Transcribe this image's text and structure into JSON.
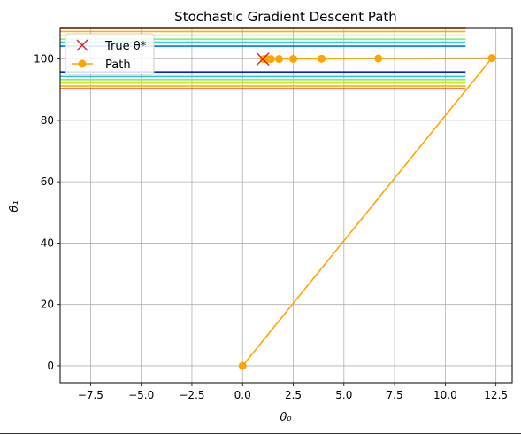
{
  "chart_data": {
    "type": "line",
    "title": "Stochastic Gradient Descent Path",
    "xlabel": "θ₀",
    "ylabel": "θ₁",
    "xlim": [
      -9,
      13.3
    ],
    "ylim": [
      -5.5,
      110
    ],
    "xticks": [
      "−7.5",
      "−5.0",
      "−2.5",
      "0.0",
      "2.5",
      "5.0",
      "7.5",
      "10.0",
      "12.5"
    ],
    "xtick_values": [
      -7.5,
      -5.0,
      -2.5,
      0.0,
      2.5,
      5.0,
      7.5,
      10.0,
      12.5
    ],
    "yticks": [
      "0",
      "20",
      "40",
      "60",
      "80",
      "100"
    ],
    "ytick_values": [
      0,
      20,
      40,
      60,
      80,
      100
    ],
    "grid": true,
    "legend": {
      "location": "upper left",
      "entries": [
        "True θ*",
        "Path"
      ]
    },
    "true_theta": {
      "name": "True θ*",
      "x": 1.0,
      "y": 100.0,
      "color": "#e41a1c",
      "marker": "x"
    },
    "path": {
      "name": "Path",
      "color": "#ffa500",
      "marker": "o",
      "x": [
        0.0,
        12.3,
        6.7,
        3.9,
        2.5,
        1.8,
        1.4,
        1.2,
        1.1,
        1.05
      ],
      "y": [
        0.0,
        100.3,
        100.2,
        100.1,
        100.05,
        100.03,
        100.02,
        100.01,
        100.0,
        100.0
      ]
    },
    "contours": {
      "x_range": [
        -9,
        11
      ],
      "upper_levels": [
        {
          "y": 110.0,
          "color": "#ff2a00"
        },
        {
          "y": 109.0,
          "color": "#ffb000"
        },
        {
          "y": 107.8,
          "color": "#d6e600"
        },
        {
          "y": 106.5,
          "color": "#6cf06a"
        },
        {
          "y": 105.5,
          "color": "#22d8cf"
        },
        {
          "y": 104.2,
          "color": "#0070ff"
        }
      ],
      "lower_levels": [
        {
          "y": 95.8,
          "color": "#0a1fe0"
        },
        {
          "y": 94.3,
          "color": "#22c8df"
        },
        {
          "y": 93.3,
          "color": "#78f07a"
        },
        {
          "y": 92.2,
          "color": "#d8ea00"
        },
        {
          "y": 91.2,
          "color": "#ffb000"
        },
        {
          "y": 90.3,
          "color": "#ff2a00"
        }
      ]
    }
  }
}
